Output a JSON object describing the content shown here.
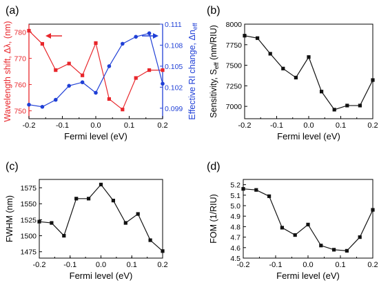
{
  "chart_data": [
    {
      "panel_label": "(a)",
      "type": "line",
      "x": [
        -0.2,
        -0.16,
        -0.12,
        -0.08,
        -0.04,
        0.0,
        0.04,
        0.08,
        0.12,
        0.16,
        0.2
      ],
      "xlabel": "Fermi level (eV)",
      "xlim": [
        -0.2,
        0.2
      ],
      "xticks": [
        "-0.2",
        "-0.1",
        "0.0",
        "0.1",
        "0.2"
      ],
      "series": [
        {
          "axis": "left",
          "color": "#e8262b",
          "marker": "square",
          "values": [
            780.5,
            775.5,
            765.5,
            768.0,
            763.5,
            775.8,
            754.5,
            750.5,
            762.5,
            765.5,
            765.5
          ]
        },
        {
          "axis": "right",
          "color": "#1f3fd6",
          "marker": "circle",
          "values": [
            0.0995,
            0.0992,
            0.1002,
            0.1022,
            0.1027,
            0.1012,
            0.105,
            0.1082,
            0.1092,
            0.1097,
            0.1025
          ]
        }
      ],
      "ylabel_left": "Wavelength shift, Δλ, (nm)",
      "ylim_left": [
        747,
        783
      ],
      "yticks_left": [
        "750",
        "760",
        "770",
        "780"
      ],
      "ylabel_right": "Effective RI change, Δn",
      "ylabel_right_sub": "eff",
      "ylim_right": [
        0.0975,
        0.111
      ],
      "yticks_right": [
        "0.099",
        "0.102",
        "0.105",
        "0.108",
        "0.111"
      ],
      "arrows": [
        {
          "direction": "left",
          "color": "#e8262b"
        },
        {
          "direction": "right",
          "color": "#1f3fd6"
        }
      ]
    },
    {
      "panel_label": "(b)",
      "type": "line",
      "x": [
        -0.2,
        -0.16,
        -0.12,
        -0.08,
        -0.04,
        0.0,
        0.04,
        0.08,
        0.12,
        0.16,
        0.2
      ],
      "values": [
        7860,
        7830,
        7640,
        7460,
        7350,
        7600,
        7180,
        6960,
        7010,
        7010,
        7320
      ],
      "xlabel": "Fermi level (eV)",
      "xlim": [
        -0.2,
        0.2
      ],
      "xticks": [
        "-0.2",
        "-0.1",
        "0.0",
        "0.1",
        "0.2"
      ],
      "ylabel": "Sensitivity, S",
      "ylabel_sub": "eff",
      "ylabel_unit": "(nm/RIU)",
      "ylim": [
        6850,
        8000
      ],
      "yticks": [
        "7000",
        "7250",
        "7500",
        "7750",
        "8000"
      ],
      "color": "#111111"
    },
    {
      "panel_label": "(c)",
      "type": "line",
      "x": [
        -0.2,
        -0.16,
        -0.12,
        -0.08,
        -0.04,
        0.0,
        0.04,
        0.08,
        0.12,
        0.16,
        0.2
      ],
      "values": [
        1522,
        1520,
        1500,
        1558,
        1558,
        1580,
        1555,
        1520,
        1534,
        1493,
        1476
      ],
      "xlabel": "Fermi level (eV)",
      "xlim": [
        -0.2,
        0.2
      ],
      "xticks": [
        "-0.2",
        "-0.1",
        "0.0",
        "0.1",
        "0.2"
      ],
      "ylabel": "FWHM (nm)",
      "ylim": [
        1465,
        1588
      ],
      "yticks": [
        "1475",
        "1500",
        "1525",
        "1550",
        "1575"
      ],
      "color": "#111111"
    },
    {
      "panel_label": "(d)",
      "type": "line",
      "x": [
        -0.2,
        -0.16,
        -0.12,
        -0.08,
        -0.04,
        0.0,
        0.04,
        0.08,
        0.12,
        0.16,
        0.2
      ],
      "values": [
        5.16,
        5.15,
        5.09,
        4.79,
        4.72,
        4.82,
        4.62,
        4.58,
        4.57,
        4.7,
        4.96
      ],
      "xlabel": "Fermi level (eV)",
      "xlim": [
        -0.2,
        0.2
      ],
      "xticks": [
        "-0.2",
        "-0.1",
        "0.0",
        "0.1",
        "0.2"
      ],
      "ylabel": "FOM (1/RIU)",
      "ylim": [
        4.5,
        5.25
      ],
      "yticks": [
        "4.5",
        "4.6",
        "4.7",
        "4.8",
        "4.9",
        "5.0",
        "5.1",
        "5.2"
      ],
      "color": "#111111"
    }
  ]
}
